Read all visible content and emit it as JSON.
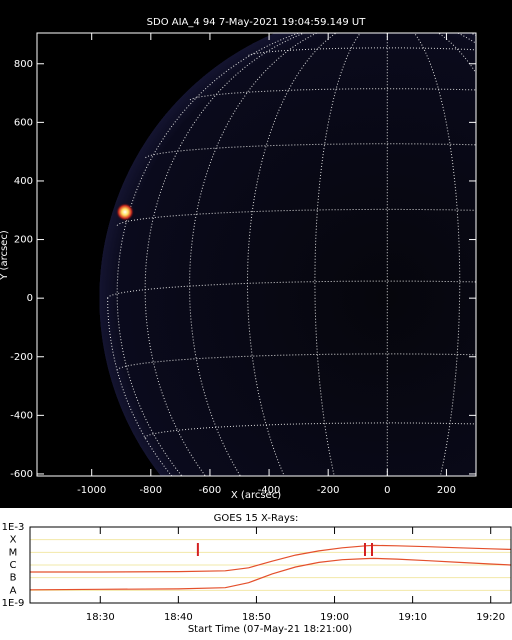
{
  "chart_data": [
    {
      "type": "image",
      "title": "SDO AIA_4 94  7-May-2021 19:04:59.149 UT",
      "xlabel": "X (arcsec)",
      "ylabel": "Y (arcsec)",
      "xlim": [
        -1185,
        300
      ],
      "ylim": [
        -607,
        905
      ],
      "xticks": [
        -1000,
        -800,
        -600,
        -400,
        -200,
        0,
        200
      ],
      "yticks": [
        -600,
        -400,
        -200,
        0,
        200,
        400,
        600,
        800
      ]
    },
    {
      "type": "line",
      "title": "GOES 15 X-Rays:",
      "xlabel": "Start Time (07-May-21 18:21:00)",
      "ylog": true,
      "xlim": [
        1101,
        1162.6
      ],
      "xticks": [
        {
          "value": 1110,
          "label": "18:30"
        },
        {
          "value": 1120,
          "label": "18:40"
        },
        {
          "value": 1130,
          "label": "18:50"
        },
        {
          "value": 1140,
          "label": "19:00"
        },
        {
          "value": 1150,
          "label": "19:10"
        },
        {
          "value": 1160,
          "label": "19:20"
        }
      ],
      "ylim": [
        1e-09,
        0.001
      ],
      "yticks": [
        {
          "value": 0.001,
          "label": "1E-3"
        },
        {
          "value": 0.0001,
          "label": "X"
        },
        {
          "value": 1e-05,
          "label": "M"
        },
        {
          "value": 1e-06,
          "label": "C"
        },
        {
          "value": 1e-07,
          "label": "B"
        },
        {
          "value": 1e-08,
          "label": "A"
        },
        {
          "value": 1e-09,
          "label": "1E-9"
        }
      ],
      "grid": true,
      "x": [
        1101,
        1110,
        1120,
        1126,
        1129,
        1132,
        1135,
        1138,
        1141,
        1144,
        1145,
        1148,
        1152,
        1156,
        1160,
        1162.6
      ],
      "series": [
        {
          "color": "#e4502c",
          "values": [
            2.8e-07,
            2.8e-07,
            3e-07,
            3.5e-07,
            6e-07,
            2e-06,
            6e-06,
            1.3e-05,
            2.3e-05,
            3.3e-05,
            3.5e-05,
            3.3e-05,
            2.8e-05,
            2.3e-05,
            1.9e-05,
            1.7e-05
          ]
        },
        {
          "color": "#e4502c",
          "values": [
            1.1e-08,
            1.2e-08,
            1.3e-08,
            1.6e-08,
            4e-08,
            2e-07,
            7e-07,
            1.6e-06,
            2.6e-06,
            3.2e-06,
            3.3e-06,
            2.9e-06,
            2.2e-06,
            1.6e-06,
            1.2e-06,
            1e-06
          ]
        }
      ],
      "event_markers": [
        1122.5,
        1143.9,
        1144.8
      ],
      "marker_color": "#d42020"
    }
  ]
}
